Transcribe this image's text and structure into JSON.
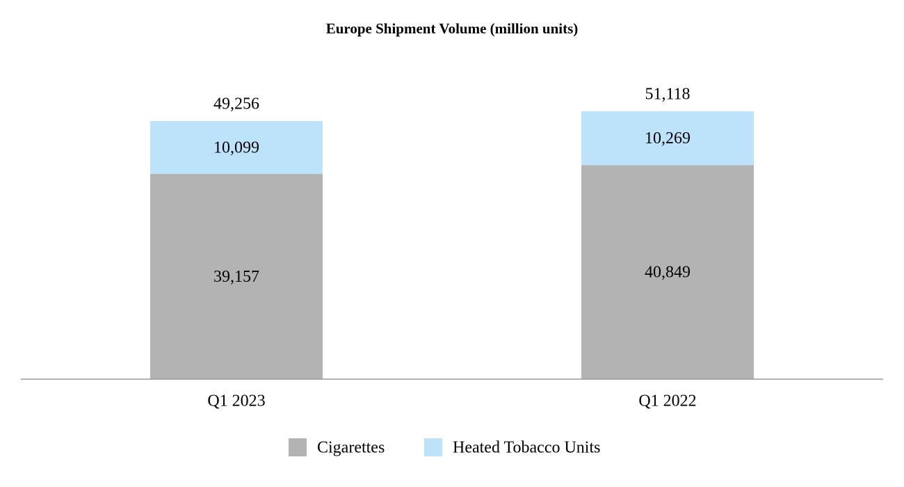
{
  "chart_data": {
    "type": "stacked_bar",
    "title": "Europe Shipment Volume (million units)",
    "categories": [
      "Q1 2023",
      "Q1 2022"
    ],
    "series": [
      {
        "name": "Cigarettes",
        "color": "#b3b3b3",
        "values": [
          39157,
          40849
        ],
        "value_labels": [
          "39,157",
          "40,849"
        ]
      },
      {
        "name": "Heated Tobacco Units",
        "color": "#bde3fb",
        "values": [
          10099,
          10269
        ],
        "value_labels": [
          "10,099",
          "10,269"
        ]
      }
    ],
    "totals": [
      49256,
      51118
    ],
    "total_labels": [
      "49,256",
      "51,118"
    ],
    "ylim": [
      0,
      60000
    ],
    "legend": "bottom"
  }
}
